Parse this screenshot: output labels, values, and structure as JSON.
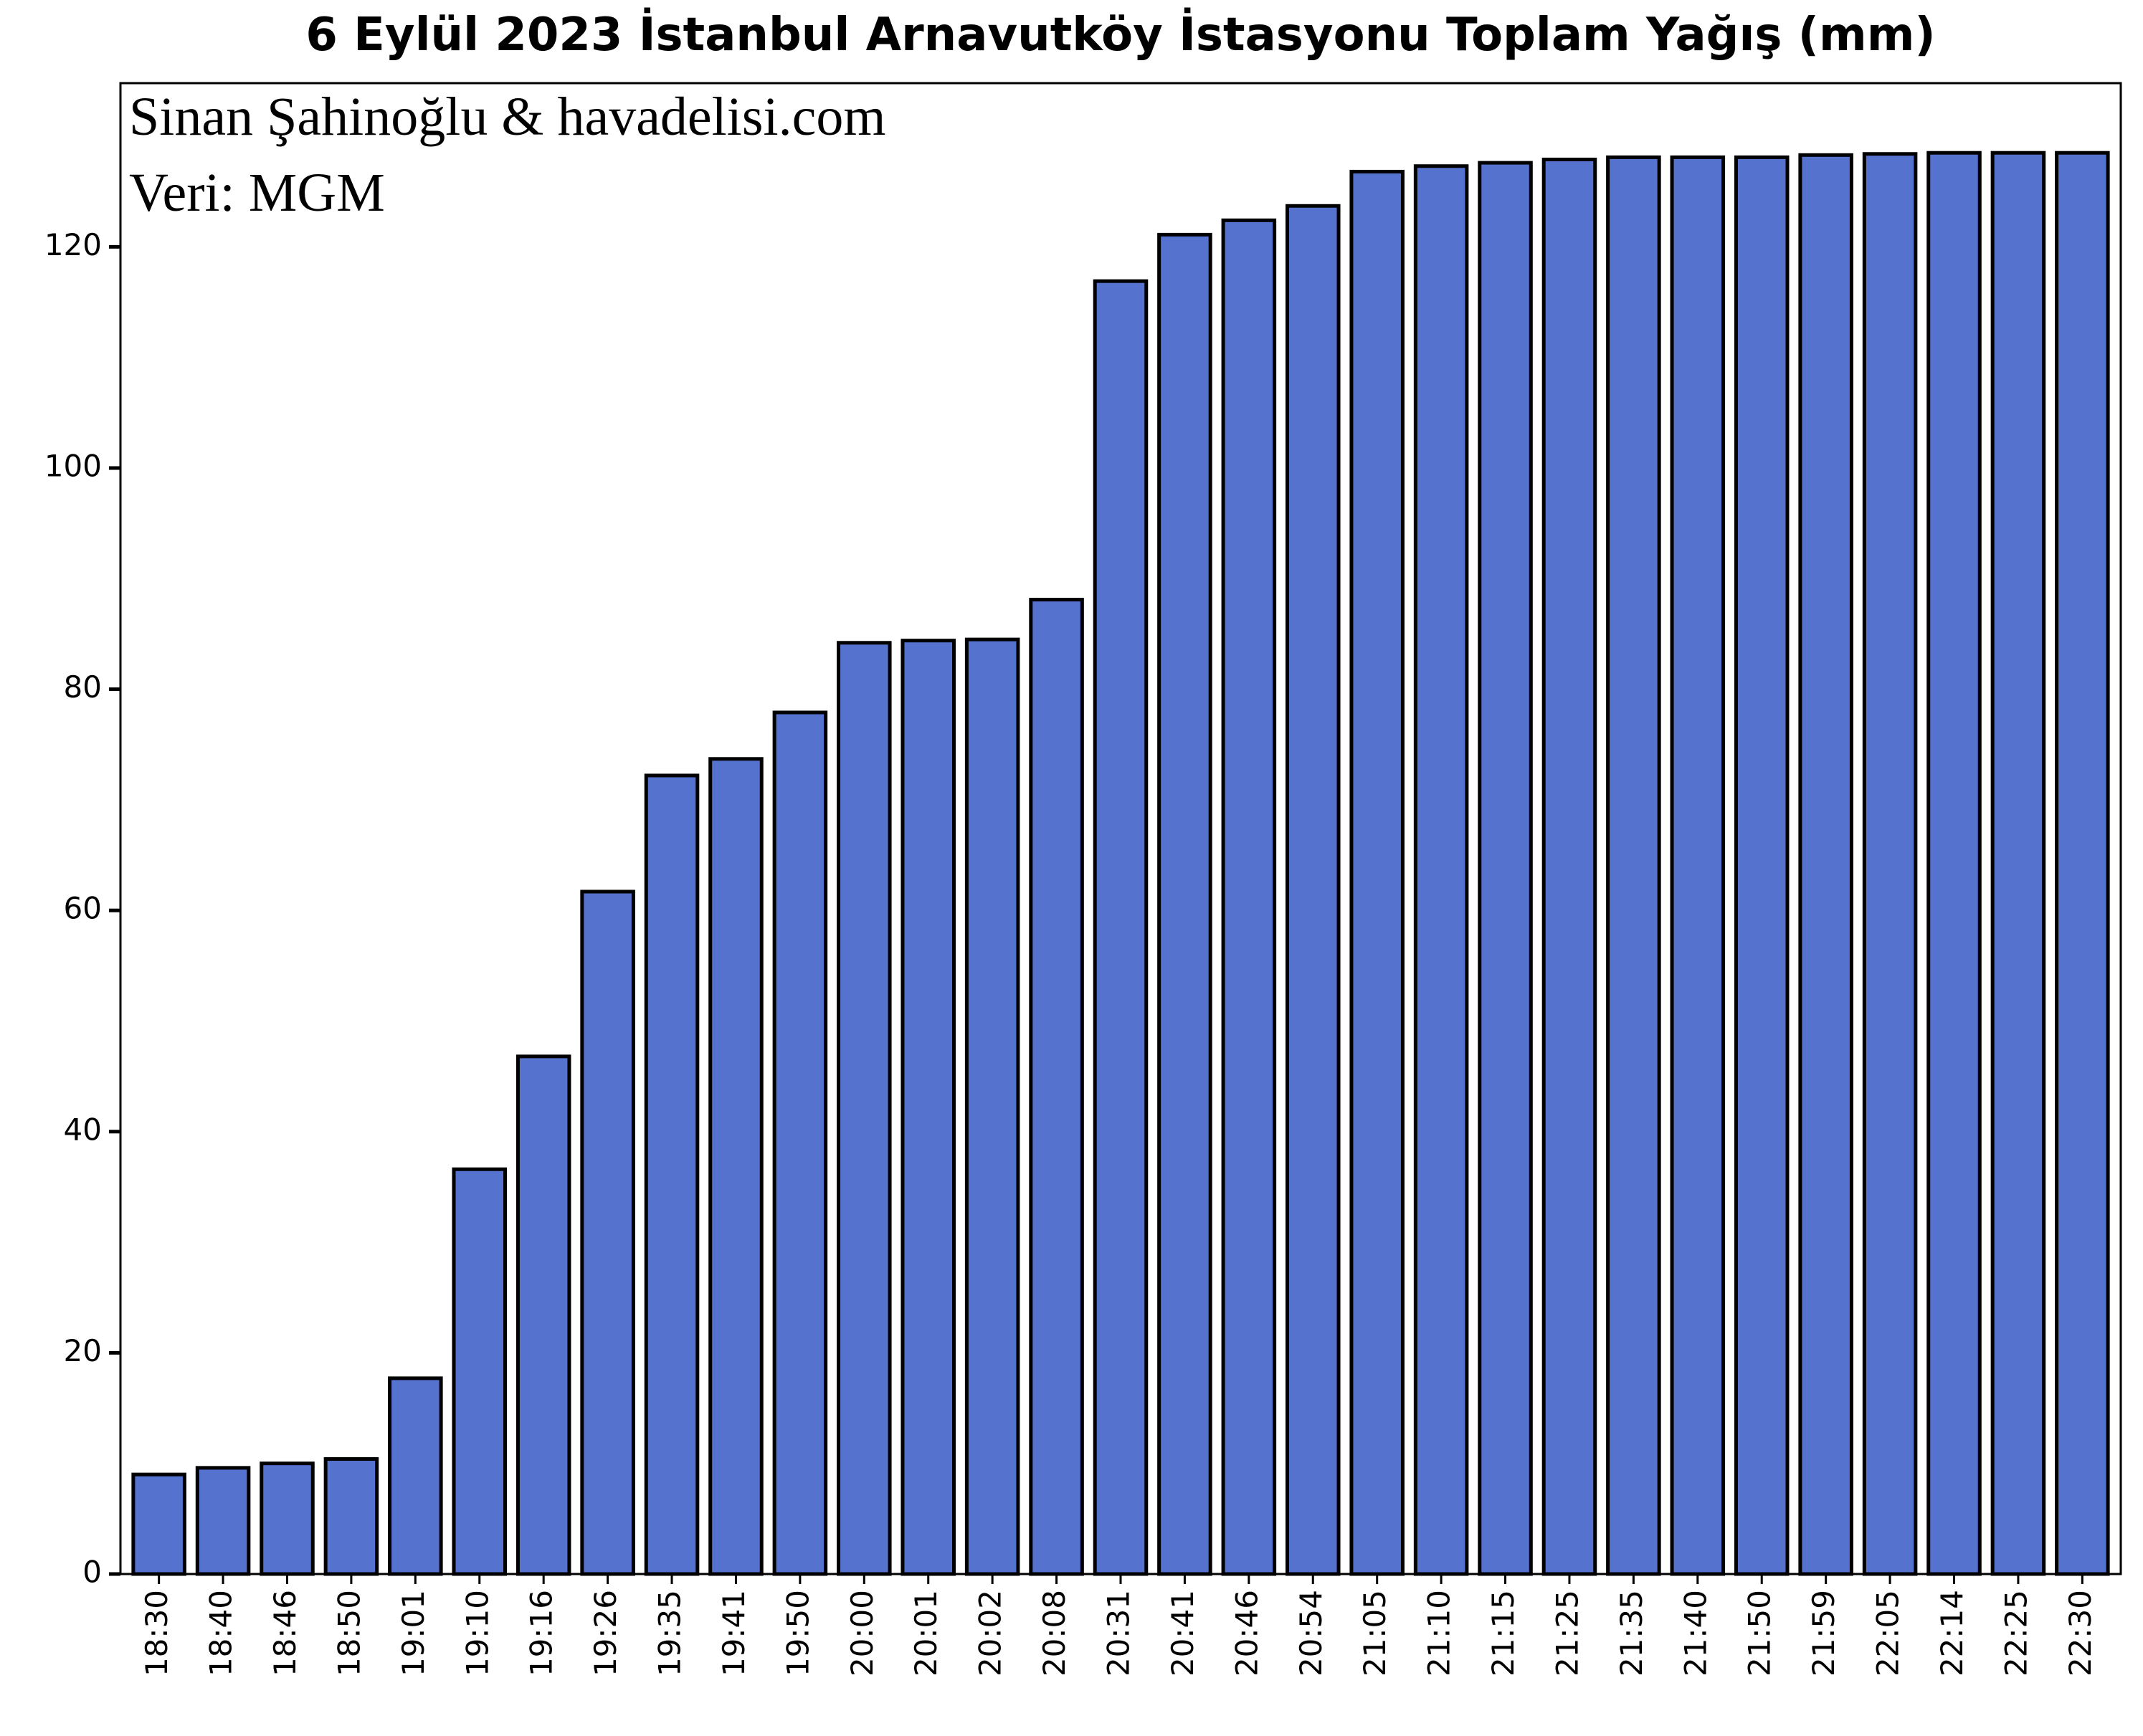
{
  "chart_data": {
    "type": "bar",
    "title": "6 Eylül 2023 İstanbul Arnavutköy İstasyonu Toplam Yağış (mm)",
    "annotations": [
      "Sinan Şahinoğlu & havadelisi.com",
      "Veri: MGM"
    ],
    "categories": [
      "18:30",
      "18:40",
      "18:46",
      "18:50",
      "19:01",
      "19:10",
      "19:16",
      "19:26",
      "19:35",
      "19:41",
      "19:50",
      "20:00",
      "20:01",
      "20:02",
      "20:08",
      "20:31",
      "20:41",
      "20:46",
      "20:54",
      "21:05",
      "21:10",
      "21:15",
      "21:25",
      "21:35",
      "21:40",
      "21:50",
      "21:59",
      "22:05",
      "22:14",
      "22:25",
      "22:30"
    ],
    "values": [
      9.0,
      9.6,
      10.0,
      10.4,
      17.7,
      36.6,
      46.8,
      61.7,
      72.2,
      73.7,
      77.9,
      84.2,
      84.4,
      84.5,
      88.1,
      116.9,
      121.1,
      122.4,
      123.7,
      126.8,
      127.3,
      127.6,
      127.9,
      128.1,
      128.1,
      128.1,
      128.3,
      128.4,
      128.5,
      128.5,
      128.5
    ],
    "color": "#5572cf",
    "ylim": [
      0,
      134.8
    ],
    "yticks": [
      0,
      20,
      40,
      60,
      80,
      100,
      120
    ],
    "grid": false
  }
}
